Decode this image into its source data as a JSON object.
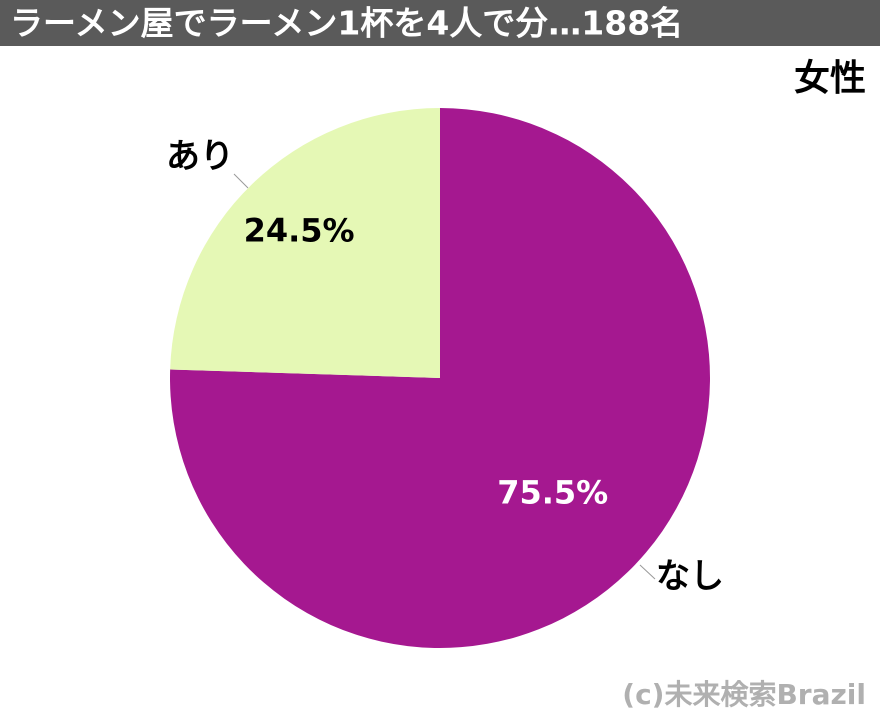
{
  "chart_data": {
    "type": "pie",
    "title": "ラーメン屋でラーメン1杯を4人で分…188名",
    "subtitle": "女性",
    "categories": [
      "なし",
      "あり"
    ],
    "values": [
      75.5,
      24.5
    ],
    "value_labels": [
      "75.5%",
      "24.5%"
    ],
    "colors": [
      "#a51890",
      "#e5f8b5"
    ],
    "label_colors": [
      "#ffffff",
      "#000000"
    ],
    "watermark": "(c)未来検索Brazil"
  }
}
